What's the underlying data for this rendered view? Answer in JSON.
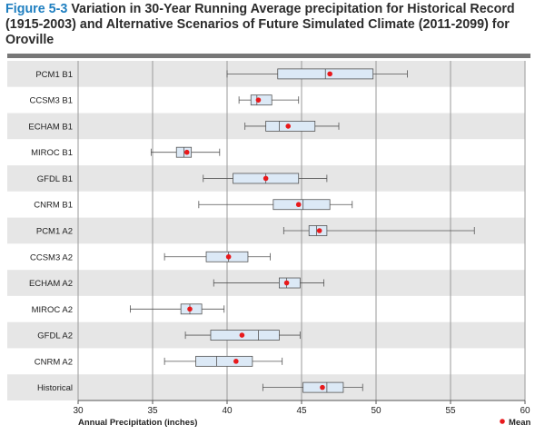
{
  "title": {
    "figure_label": "Figure 5-3",
    "text": "Variation in 30-Year Running Average precipitation for Historical Record (1915-2003) and Alternative Scenarios of Future Simulated Climate (2011-2099) for Oroville"
  },
  "chart_data": {
    "type": "boxplot",
    "orientation": "horizontal",
    "xlabel": "Annual Precipitation (inches)",
    "xlim": [
      30,
      60
    ],
    "xticks": [
      30,
      35,
      40,
      45,
      50,
      55,
      60
    ],
    "grid": "vertical",
    "legend": {
      "label": "Mean",
      "position": "bottom-right"
    },
    "colors": {
      "box_fill": "#dce9f6",
      "box_stroke": "#555555",
      "mean_marker": "#e8191c",
      "band_dark": "#e6e6e6",
      "band_light": "#ffffff",
      "grid": "#9a9a9a",
      "top_bar": "#777777"
    },
    "categories": [
      "PCM1 B1",
      "CCSM3 B1",
      "ECHAM B1",
      "MIROC B1",
      "GFDL B1",
      "CNRM B1",
      "PCM1 A2",
      "CCSM3 A2",
      "ECHAM A2",
      "MIROC A2",
      "GFDL A2",
      "CNRM A2",
      "Historical"
    ],
    "series": [
      {
        "category": "PCM1 B1",
        "min": 40.0,
        "q1": 43.4,
        "median": 46.6,
        "q3": 49.8,
        "max": 52.1,
        "mean": 46.9
      },
      {
        "category": "CCSM3 B1",
        "min": 40.8,
        "q1": 41.6,
        "median": 42.0,
        "q3": 43.0,
        "max": 44.8,
        "mean": 42.1
      },
      {
        "category": "ECHAM B1",
        "min": 41.2,
        "q1": 42.6,
        "median": 43.5,
        "q3": 45.9,
        "max": 47.5,
        "mean": 44.1
      },
      {
        "category": "MIROC B1",
        "min": 34.9,
        "q1": 36.6,
        "median": 37.1,
        "q3": 37.6,
        "max": 39.5,
        "mean": 37.3
      },
      {
        "category": "GFDL B1",
        "min": 38.4,
        "q1": 40.4,
        "median": 42.6,
        "q3": 44.8,
        "max": 46.7,
        "mean": 42.6
      },
      {
        "category": "CNRM B1",
        "min": 38.1,
        "q1": 43.1,
        "median": 45.1,
        "q3": 46.9,
        "max": 48.4,
        "mean": 44.8
      },
      {
        "category": "PCM1 A2",
        "min": 43.8,
        "q1": 45.5,
        "median": 46.0,
        "q3": 46.7,
        "max": 56.6,
        "mean": 46.2
      },
      {
        "category": "CCSM3 A2",
        "min": 35.8,
        "q1": 38.6,
        "median": 40.1,
        "q3": 41.4,
        "max": 42.9,
        "mean": 40.1
      },
      {
        "category": "ECHAM A2",
        "min": 39.1,
        "q1": 43.5,
        "median": 44.0,
        "q3": 44.9,
        "max": 46.5,
        "mean": 44.0
      },
      {
        "category": "MIROC A2",
        "min": 33.5,
        "q1": 36.9,
        "median": 37.5,
        "q3": 38.3,
        "max": 39.8,
        "mean": 37.5
      },
      {
        "category": "GFDL A2",
        "min": 37.2,
        "q1": 38.9,
        "median": 42.1,
        "q3": 43.5,
        "max": 44.9,
        "mean": 41.0
      },
      {
        "category": "CNRM A2",
        "min": 35.8,
        "q1": 37.9,
        "median": 39.3,
        "q3": 41.7,
        "max": 43.7,
        "mean": 40.6
      },
      {
        "category": "Historical",
        "min": 42.4,
        "q1": 45.1,
        "median": 46.7,
        "q3": 47.8,
        "max": 49.1,
        "mean": 46.4
      }
    ]
  }
}
